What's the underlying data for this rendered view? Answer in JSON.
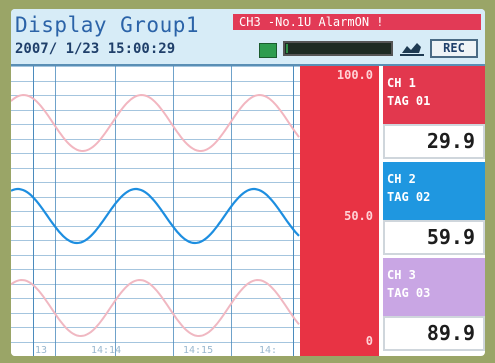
{
  "header": {
    "title": "Display Group1",
    "datetime": "2007/ 1/23 15:00:29",
    "alarm_banner": "CH3 -No.1U AlarmON !",
    "memory_fill_fraction": 0.02,
    "rec_label": "REC"
  },
  "scale": {
    "top": "100.0",
    "middle": "50.0",
    "bottom": "0"
  },
  "time_labels": [
    "13",
    "14:14",
    "14:15",
    "14:"
  ],
  "channels": [
    {
      "ch": "CH 1",
      "tag": "TAG 01",
      "value": "29.9",
      "color": "#e2384e"
    },
    {
      "ch": "CH 2",
      "tag": "TAG 02",
      "value": "59.9",
      "color": "#1f97e0"
    },
    {
      "ch": "CH 3",
      "tag": "TAG 03",
      "value": "89.9",
      "color": "#c9a6e4"
    }
  ],
  "colors": {
    "trace_ch1": "#f2b6c0",
    "trace_ch2": "#1d8ee0",
    "trace_ch3": "#f0b8c2",
    "scale_bg": "#e83344",
    "grid": "#4b8bbd"
  }
}
